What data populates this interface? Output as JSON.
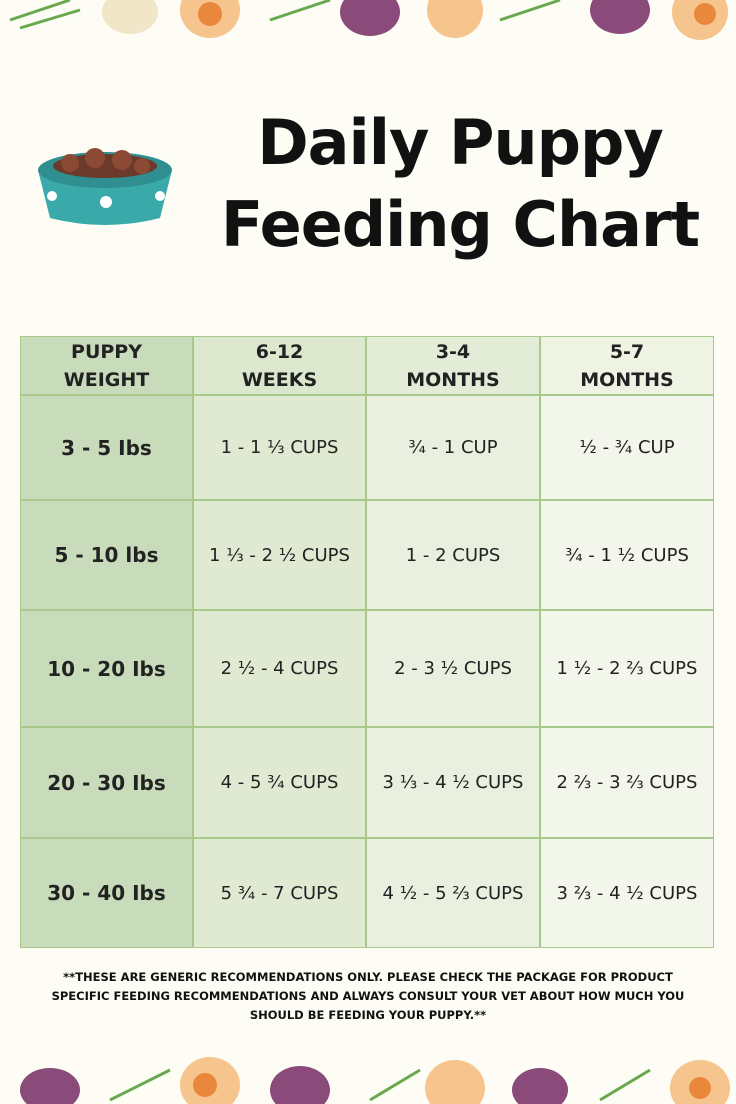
{
  "title_lines": [
    "Daily Puppy",
    "Feeding Chart"
  ],
  "table": {
    "header": [
      [
        "PUPPY",
        "WEIGHT"
      ],
      [
        "6-12",
        "WEEKS"
      ],
      [
        "3-4",
        "MONTHS"
      ],
      [
        "5-7",
        "MONTHS"
      ]
    ],
    "rows": [
      [
        "3 - 5 Ibs",
        "1 - 1 ⅓ CUPS",
        "¾ - 1 CUP",
        "½ - ¾ CUP"
      ],
      [
        "5 - 10 lbs",
        "1 ⅓ - 2 ½ CUPS",
        "1 - 2 CUPS",
        "¾ - 1 ½ CUPS"
      ],
      [
        "10 - 20 Ibs",
        "2 ½ - 4 CUPS",
        "2 - 3 ½ CUPS",
        "1 ½ - 2 ⅔ CUPS"
      ],
      [
        "20 - 30 Ibs",
        "4 - 5 ¾ CUPS",
        "3 ⅓ - 4 ½ CUPS",
        "2 ⅔ - 3 ⅔ CUPS"
      ],
      [
        "30 - 40 Ibs",
        "5 ¾ - 7 CUPS",
        "4 ½ - 5 ⅔ CUPS",
        "3 ⅔ - 4 ½ CUPS"
      ]
    ]
  },
  "footnote": "**THESE ARE GENERIC RECOMMENDATIONS ONLY.  PLEASE CHECK THE PACKAGE FOR PRODUCT SPECIFIC FEEDING RECOMMENDATIONS AND ALWAYS CONSULT YOUR VET ABOUT HOW MUCH YOU SHOULD BE FEEDING YOUR PUPPY.**"
}
